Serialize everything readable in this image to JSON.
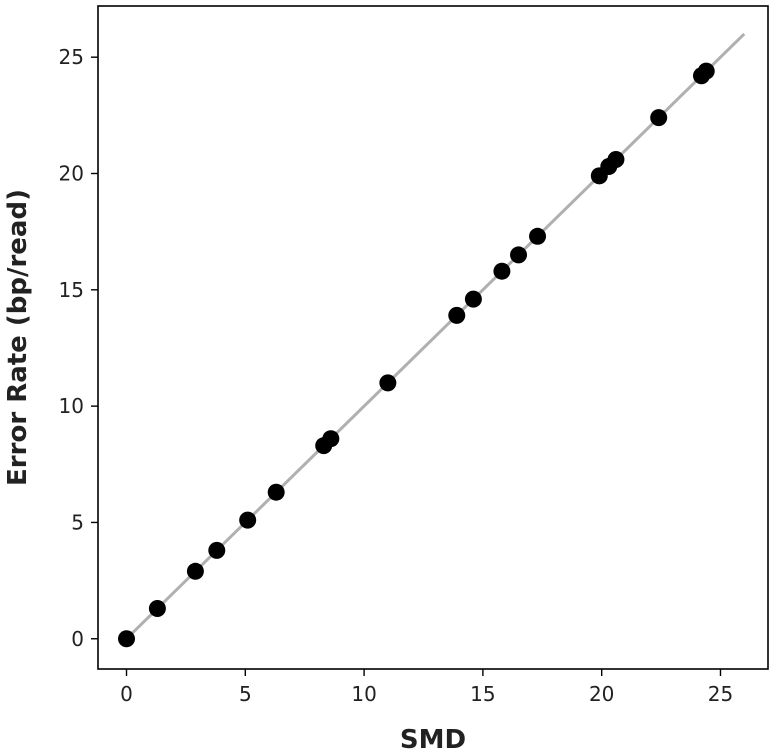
{
  "chart_data": {
    "type": "scatter",
    "xlabel": "SMD",
    "ylabel": "Error Rate (bp/read)",
    "xlim": [
      -1.2,
      27.0
    ],
    "ylim": [
      -1.3,
      27.2
    ],
    "xticks": [
      0,
      5,
      10,
      15,
      20,
      25
    ],
    "yticks": [
      0,
      5,
      10,
      15,
      20,
      25
    ],
    "grid": false,
    "reference_line": {
      "x": [
        0,
        26
      ],
      "y": [
        0,
        26
      ],
      "color": "#b0b0b0"
    },
    "marker_color": "#000000",
    "points": [
      {
        "x": 0.0,
        "y": 0.0
      },
      {
        "x": 1.3,
        "y": 1.3
      },
      {
        "x": 2.9,
        "y": 2.9
      },
      {
        "x": 3.8,
        "y": 3.8
      },
      {
        "x": 5.1,
        "y": 5.1
      },
      {
        "x": 6.3,
        "y": 6.3
      },
      {
        "x": 8.3,
        "y": 8.3
      },
      {
        "x": 8.6,
        "y": 8.6
      },
      {
        "x": 11.0,
        "y": 11.0
      },
      {
        "x": 13.9,
        "y": 13.9
      },
      {
        "x": 14.6,
        "y": 14.6
      },
      {
        "x": 15.8,
        "y": 15.8
      },
      {
        "x": 16.5,
        "y": 16.5
      },
      {
        "x": 17.3,
        "y": 17.3
      },
      {
        "x": 19.9,
        "y": 19.9
      },
      {
        "x": 20.3,
        "y": 20.3
      },
      {
        "x": 20.6,
        "y": 20.6
      },
      {
        "x": 22.4,
        "y": 22.4
      },
      {
        "x": 24.2,
        "y": 24.2
      },
      {
        "x": 24.4,
        "y": 24.4
      }
    ]
  }
}
